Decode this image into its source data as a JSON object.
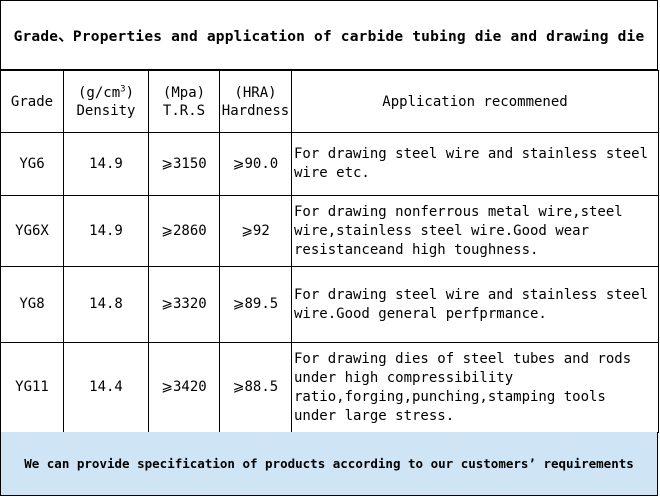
{
  "title": "Grade、Properties and application of carbide tubing die and drawing die",
  "header": {
    "grade": "Grade",
    "density_unit_prefix": "(g/cm",
    "density_unit_sup": "3",
    "density_unit_suffix": ")",
    "density": "Density",
    "trs_unit": "(Mpa)",
    "trs": "T.R.S",
    "hardness_unit": "(HRA)",
    "hardness": "Hardness",
    "application": "Application recommened"
  },
  "rows": [
    {
      "grade": "YG6",
      "density": "14.9",
      "trs": "⩾3150",
      "hardness": "⩾90.0",
      "application": "For drawing steel wire and stainless steel wire etc."
    },
    {
      "grade": "YG6X",
      "density": "14.9",
      "trs": "⩾2860",
      "hardness": "⩾92",
      "application": "For drawing nonferrous metal wire,steel wire,stainless steel wire.Good wear resistanceand high toughness."
    },
    {
      "grade": "YG8",
      "density": "14.8",
      "trs": "⩾3320",
      "hardness": "⩾89.5",
      "application": "For drawing steel wire and stainless steel wire.Good general perfprmance."
    },
    {
      "grade": "YG11",
      "density": "14.4",
      "trs": "⩾3420",
      "hardness": "⩾88.5",
      "application": "For drawing dies of steel tubes and rods under high compressibility ratio,forging,punching,stamping tools under large stress."
    }
  ],
  "footer": "We can provide specification of products according to our customers’ requirements",
  "colors": {
    "footer_bg": "#cfe5f5",
    "border": "#000000"
  }
}
